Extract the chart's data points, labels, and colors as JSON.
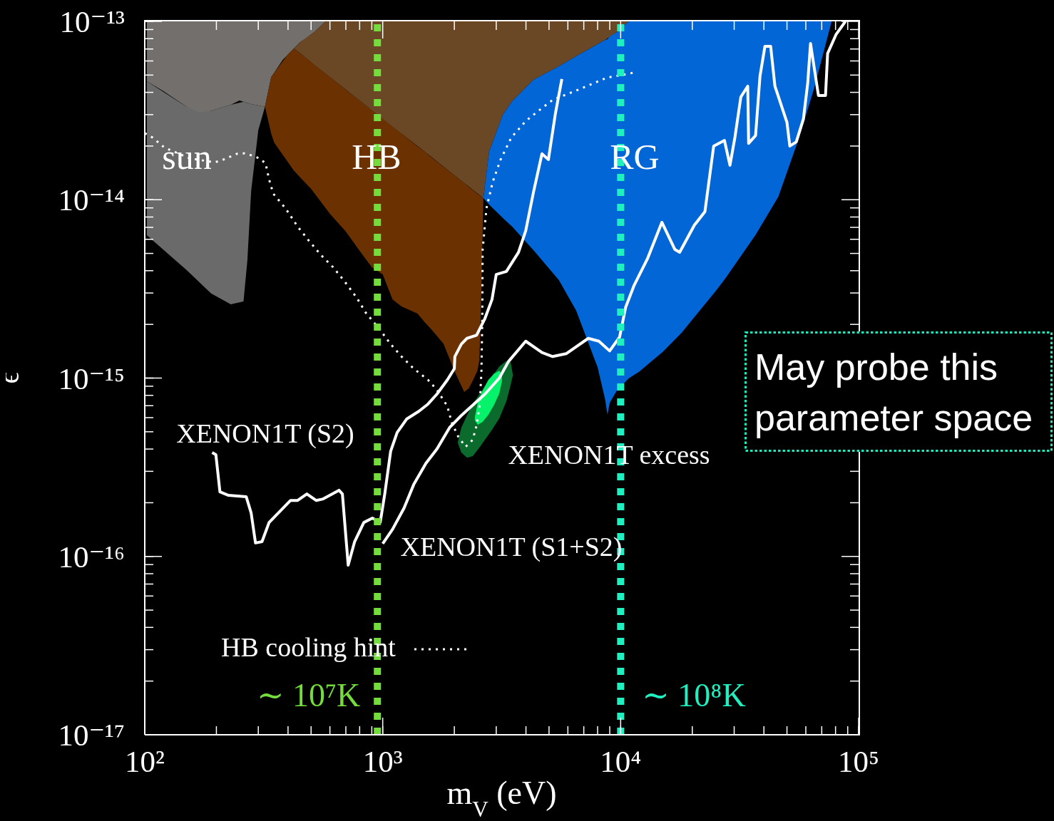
{
  "chart_data": {
    "type": "line",
    "xlabel": "m$_{V}$ (eV)",
    "ylabel": "ϵ",
    "log": "xy",
    "xlim": [
      100,
      100000
    ],
    "ylim": [
      1e-17,
      1e-13
    ],
    "xticks": [
      {
        "value": 100,
        "label": "10²"
      },
      {
        "value": 200,
        "label": null
      },
      {
        "value": 300,
        "label": null
      },
      {
        "value": 400,
        "label": null
      },
      {
        "value": 500,
        "label": null
      },
      {
        "value": 600,
        "label": null
      },
      {
        "value": 700,
        "label": null
      },
      {
        "value": 800,
        "label": null
      },
      {
        "value": 900,
        "label": null
      },
      {
        "value": 1000,
        "label": "10³"
      },
      {
        "value": 2000,
        "label": null
      },
      {
        "value": 3000,
        "label": null
      },
      {
        "value": 4000,
        "label": null
      },
      {
        "value": 5000,
        "label": null
      },
      {
        "value": 6000,
        "label": null
      },
      {
        "value": 7000,
        "label": null
      },
      {
        "value": 8000,
        "label": null
      },
      {
        "value": 9000,
        "label": null
      },
      {
        "value": 10000,
        "label": "10⁴"
      },
      {
        "value": 20000,
        "label": null
      },
      {
        "value": 30000,
        "label": null
      },
      {
        "value": 40000,
        "label": null
      },
      {
        "value": 50000,
        "label": null
      },
      {
        "value": 60000,
        "label": null
      },
      {
        "value": 70000,
        "label": null
      },
      {
        "value": 80000,
        "label": null
      },
      {
        "value": 90000,
        "label": null
      },
      {
        "value": 100000,
        "label": "10⁵"
      }
    ],
    "yticks": [
      {
        "value": 1e-17,
        "label": "10⁻¹⁷"
      },
      {
        "value": 2e-17,
        "label": null
      },
      {
        "value": 3e-17,
        "label": null
      },
      {
        "value": 4e-17,
        "label": null
      },
      {
        "value": 5e-17,
        "label": null
      },
      {
        "value": 6e-17,
        "label": null
      },
      {
        "value": 7e-17,
        "label": null
      },
      {
        "value": 8e-17,
        "label": null
      },
      {
        "value": 9e-17,
        "label": null
      },
      {
        "value": 1e-16,
        "label": "10⁻¹⁶"
      },
      {
        "value": 2e-16,
        "label": null
      },
      {
        "value": 3e-16,
        "label": null
      },
      {
        "value": 4e-16,
        "label": null
      },
      {
        "value": 5e-16,
        "label": null
      },
      {
        "value": 6e-16,
        "label": null
      },
      {
        "value": 7e-16,
        "label": null
      },
      {
        "value": 8e-16,
        "label": null
      },
      {
        "value": 9e-16,
        "label": null
      },
      {
        "value": 1e-15,
        "label": "10⁻¹⁵"
      },
      {
        "value": 2e-15,
        "label": null
      },
      {
        "value": 3e-15,
        "label": null
      },
      {
        "value": 4e-15,
        "label": null
      },
      {
        "value": 5e-15,
        "label": null
      },
      {
        "value": 6e-15,
        "label": null
      },
      {
        "value": 7e-15,
        "label": null
      },
      {
        "value": 8e-15,
        "label": null
      },
      {
        "value": 9e-15,
        "label": null
      },
      {
        "value": 1e-14,
        "label": "10⁻¹⁴"
      },
      {
        "value": 2e-14,
        "label": null
      },
      {
        "value": 3e-14,
        "label": null
      },
      {
        "value": 4e-14,
        "label": null
      },
      {
        "value": 5e-14,
        "label": null
      },
      {
        "value": 6e-14,
        "label": null
      },
      {
        "value": 7e-14,
        "label": null
      },
      {
        "value": 8e-14,
        "label": null
      },
      {
        "value": 9e-14,
        "label": null
      },
      {
        "value": 1e-13,
        "label": "10⁻¹³"
      }
    ],
    "legend": "bottom left",
    "marker": "none",
    "series": [
      {
        "color": "#6a6a6a",
        "x": [
          102,
          150,
          190,
          230,
          260,
          270,
          280,
          300,
          320
        ],
        "values": [
          null,
          null,
          null,
          null,
          null,
          null,
          null,
          null,
          null
        ],
        "upper": [
          4.62e-14,
          3.32e-14,
          3.15e-14,
          3.41e-14,
          3.54e-14,
          3.49e-14,
          3.44e-14,
          3.38e-14,
          3.32e-14
        ],
        "lower": [
          6.33e-15,
          4.03e-15,
          2.98e-15,
          2.59e-15,
          2.69e-15,
          4.58e-15,
          1.12e-14,
          2.45e-14,
          3.32e-14
        ]
      },
      {
        "color": "#736f6c",
        "x": [
          102,
          120,
          150,
          170,
          190,
          230,
          250,
          280,
          320,
          340,
          350,
          380,
          450,
          470,
          520,
          575
        ],
        "values": [
          null,
          null,
          null,
          null,
          null,
          null,
          null,
          null,
          null,
          null,
          null,
          null,
          null,
          null,
          null,
          null
        ],
        "upper": [
          1e-13,
          1e-13,
          1e-13,
          1e-13,
          1e-13,
          1e-13,
          1e-13,
          1e-13,
          1e-13,
          1e-13,
          1e-13,
          1e-13,
          1e-13,
          1e-13,
          1e-13,
          1e-13
        ],
        "lower": [
          4.62e-14,
          4.06e-14,
          3.32e-14,
          3.08e-14,
          3.15e-14,
          3.41e-14,
          3.6e-14,
          3.44e-14,
          3.32e-14,
          4.88e-14,
          5.16e-14,
          6.08e-14,
          7.66e-14,
          7.95e-14,
          8.79e-14,
          1e-13
        ]
      },
      {
        "color": "#6b3100",
        "x": [
          320,
          340,
          350,
          400,
          424,
          500,
          600,
          700,
          800,
          900,
          1000,
          1100,
          1200,
          1400,
          1500,
          1600,
          1800,
          2000,
          2200,
          2300,
          2400,
          2500,
          2550,
          2600,
          2650
        ],
        "values": [
          null,
          null,
          null,
          null,
          null,
          null,
          null,
          null,
          null,
          null,
          null,
          null,
          null,
          null,
          null,
          null,
          null,
          null,
          null,
          null,
          null,
          null,
          null,
          null,
          null
        ],
        "upper": [
          3.32e-14,
          4.88e-14,
          5.16e-14,
          6.55e-14,
          7.05e-14,
          5.92e-14,
          4.88e-14,
          4.13e-14,
          3.6e-14,
          3.18e-14,
          2.85e-14,
          2.58e-14,
          2.35e-14,
          1.99e-14,
          1.86e-14,
          1.73e-14,
          1.53e-14,
          1.37e-14,
          1.24e-14,
          1.18e-14,
          1.13e-14,
          1.08e-14,
          1.06e-14,
          1.04e-14,
          1.02e-14
        ],
        "lower": [
          3.32e-14,
          2.34e-14,
          2.09e-14,
          1.62e-14,
          1.45e-14,
          1.15e-14,
          8.34e-15,
          6.63e-15,
          5.17e-15,
          4.18e-15,
          3.81e-15,
          2.76e-15,
          2.52e-15,
          2.3e-15,
          2.06e-15,
          1.88e-15,
          1.56e-15,
          1.1e-15,
          8.36e-16,
          8.75e-16,
          9.77e-16,
          1.1e-15,
          1.26e-15,
          3.32e-15,
          1.02e-14
        ]
      },
      {
        "color": "#6a4725",
        "x": [
          424,
          450,
          520,
          575,
          760,
          1100,
          1500,
          2200,
          2650,
          2700,
          2800,
          3200,
          3500,
          4300,
          5500,
          6500,
          8600,
          9600,
          10800
        ],
        "values": [
          null,
          null,
          null,
          null,
          null,
          null,
          null,
          null,
          null,
          null,
          null,
          null,
          null,
          null,
          null,
          null,
          null,
          null,
          null
        ],
        "upper": [
          7.05e-14,
          7.66e-14,
          8.79e-14,
          1e-13,
          1e-13,
          1e-13,
          1e-13,
          1e-13,
          1e-13,
          1e-13,
          1e-13,
          1e-13,
          1e-13,
          1e-13,
          1e-13,
          1e-13,
          1e-13,
          1e-13,
          1e-13
        ],
        "lower": [
          7.05e-14,
          6.62e-14,
          5.67e-14,
          5.1e-14,
          3.8e-14,
          2.57e-14,
          1.86e-14,
          1.24e-14,
          1.02e-14,
          1.26e-14,
          1.86e-14,
          3e-14,
          3.57e-14,
          4.7e-14,
          5.6e-14,
          6.37e-14,
          7.87e-14,
          8.67e-14,
          1e-13
        ]
      },
      {
        "color": "#0366d6",
        "x": [
          2650,
          2700,
          2800,
          3200,
          3500,
          4300,
          5500,
          6500,
          8000,
          8600,
          8800,
          9000,
          9600,
          10800,
          12000,
          15000,
          18000,
          25000,
          27500,
          37000,
          46000,
          56000,
          65000,
          77000
        ],
        "values": [
          null,
          null,
          null,
          null,
          null,
          null,
          null,
          null,
          null,
          null,
          null,
          null,
          null,
          null,
          null,
          null,
          null,
          null,
          null,
          null,
          null,
          null,
          null,
          null
        ],
        "upper": [
          1.02e-14,
          1.26e-14,
          1.86e-14,
          3e-14,
          3.57e-14,
          4.7e-14,
          5.6e-14,
          6.37e-14,
          7.45e-14,
          7.87e-14,
          7.95e-14,
          8.24e-14,
          8.67e-14,
          1e-13,
          1e-13,
          1e-13,
          1e-13,
          1e-13,
          1e-13,
          1e-13,
          1e-13,
          1e-13,
          1e-13,
          1e-13
        ],
        "lower": [
          1.02e-14,
          9.93e-15,
          9.4e-15,
          7.89e-15,
          7.07e-15,
          5.22e-15,
          3.54e-15,
          2.39e-15,
          1.15e-15,
          7.62e-16,
          6.23e-16,
          7.28e-16,
          8.44e-16,
          9.95e-16,
          1.09e-15,
          1.4e-15,
          1.79e-15,
          3.06e-15,
          3.61e-15,
          6.39e-15,
          1.04e-14,
          2.19e-14,
          4.21e-14,
          1e-13
        ]
      },
      {
        "color": "#0a6b2c",
        "x": [
          2070,
          2140,
          2260,
          2390,
          2550,
          2690,
          2880,
          3090,
          3310,
          3450,
          3520
        ],
        "values": [
          null,
          null,
          null,
          null,
          null,
          null,
          null,
          null,
          null,
          null,
          null
        ],
        "upper": [
          4.39e-16,
          5.28e-16,
          6.17e-16,
          7.15e-16,
          8.13e-16,
          8.99e-16,
          1.02e-15,
          1.16e-15,
          1.25e-15,
          1.23e-15,
          1.05e-15
        ],
        "lower": [
          4.31e-16,
          3.82e-16,
          3.58e-16,
          3.65e-16,
          4.08e-16,
          4.51e-16,
          5.13e-16,
          5.95e-16,
          7.42e-16,
          9.16e-16,
          1.03e-15
        ]
      },
      {
        "color": "#05f26a",
        "x": [
          2440,
          2510,
          2630,
          2780,
          2940,
          3090,
          3170
        ],
        "values": [
          null,
          null,
          null,
          null,
          null,
          null,
          null
        ],
        "upper": [
          6.06e-16,
          7.28e-16,
          8.51e-16,
          9.77e-16,
          1.06e-15,
          1.1e-15,
          1.05e-15
        ],
        "lower": [
          5.78e-16,
          5.47e-16,
          5.68e-16,
          6.23e-16,
          7.08e-16,
          8.21e-16,
          9.59e-16
        ]
      },
      {
        "name": "HB cooling hint",
        "color": "#ffffff",
        "line_style": "dotted",
        "x": [
          100,
          108,
          121,
          154,
          196,
          210,
          244,
          263,
          282,
          302,
          322,
          333,
          347,
          390,
          439,
          490,
          551,
          619,
          692,
          778,
          850,
          976,
          1080,
          1200,
          1350,
          1550,
          1690,
          1870,
          1950,
          2080,
          2230,
          2390,
          2480,
          2560,
          2600,
          2620,
          2630,
          2730,
          2900,
          3130,
          3470,
          3990,
          4540,
          5180,
          6730,
          8740,
          11400
        ],
        "values": [
          2.36e-14,
          2.23e-14,
          1.96e-14,
          1.71e-14,
          1.62e-14,
          1.66e-14,
          1.81e-14,
          1.82e-14,
          1.77e-14,
          1.71e-14,
          1.6e-14,
          1.3e-14,
          1.08e-14,
          8.97e-15,
          7.07e-15,
          5.88e-15,
          4.89e-15,
          4.18e-15,
          3.48e-15,
          2.82e-15,
          2.32e-15,
          1.86e-15,
          1.55e-15,
          1.32e-15,
          1.13e-15,
          9.77e-16,
          8.59e-16,
          6.95e-16,
          5.63e-16,
          4.68e-16,
          4.12e-16,
          4.51e-16,
          5.42e-16,
          7.15e-16,
          1.1e-15,
          2.04e-15,
          5.26e-15,
          8.97e-15,
          1.26e-14,
          1.68e-14,
          2.23e-14,
          2.76e-14,
          3.17e-14,
          3.63e-14,
          4.17e-14,
          4.83e-14,
          5.16e-14
        ]
      },
      {
        "color": "#ffffff",
        "x": [
          192,
          199,
          207,
          225,
          267,
          280,
          292,
          311,
          333,
          410,
          439,
          480,
          525,
          562,
          655,
          677,
          716,
          762,
          833,
          905,
          976,
          1020,
          1080,
          1150,
          1260,
          1420,
          1550,
          1690,
          1870,
          2000,
          2010,
          2140,
          2260,
          2480,
          2690,
          2880,
          3000,
          3310,
          3720,
          3990,
          4300,
          4670,
          4970,
          5320,
          5660
        ],
        "values": [
          3.82e-16,
          3.72e-16,
          2.3e-16,
          2.2e-16,
          2.16e-16,
          1.75e-16,
          1.19e-16,
          1.21e-16,
          1.55e-16,
          2.06e-16,
          2.06e-16,
          2.24e-16,
          2.06e-16,
          2.1e-16,
          2.35e-16,
          2.24e-16,
          8.93e-17,
          1.21e-16,
          1.55e-16,
          1.64e-16,
          1.55e-16,
          2.24e-16,
          3.89e-16,
          4.95e-16,
          5.89e-16,
          6.52e-16,
          7.15e-16,
          8.13e-16,
          9.77e-16,
          1.13e-15,
          1.32e-15,
          1.55e-15,
          1.67e-15,
          1.74e-15,
          2.16e-15,
          2.76e-15,
          3.81e-15,
          3.96e-15,
          5.07e-15,
          6.69e-15,
          1.1e-14,
          1.81e-14,
          1.68e-14,
          3.05e-14,
          4.75e-14
        ]
      },
      {
        "color": "#ffffff",
        "x": [
          1000,
          1100,
          1230,
          1350,
          1520,
          1690,
          1910,
          2140,
          2690,
          3090,
          3380,
          3990,
          4670,
          5180,
          5900,
          7310,
          8100,
          8990,
          9900,
          10500,
          11400,
          13000,
          14900,
          16900,
          17700,
          20400,
          22600,
          24600,
          27300,
          28800,
          30200,
          32000,
          34200,
          34500,
          36900,
          38500,
          40400,
          42700,
          44500,
          50000,
          51400,
          54700,
          58600,
          61100,
          62800,
          65000,
          67800,
          72600,
          74100,
          80500,
          88000
        ],
        "values": [
          1.18e-16,
          1.42e-16,
          1.87e-16,
          2.53e-16,
          3.33e-16,
          4e-16,
          5.28e-16,
          6.17e-16,
          8.13e-16,
          1e-15,
          1.24e-15,
          1.61e-15,
          1.39e-15,
          1.32e-15,
          1.37e-15,
          1.67e-15,
          1.61e-15,
          1.42e-15,
          1.7e-15,
          2.5e-15,
          3.32e-15,
          4.71e-15,
          7.47e-15,
          5.26e-15,
          5.07e-15,
          7.2e-15,
          8.57e-15,
          2e-14,
          2.15e-14,
          1.56e-14,
          2.23e-14,
          3.77e-14,
          4.33e-14,
          2.07e-14,
          2.29e-14,
          4.92e-14,
          7.25e-14,
          7.25e-14,
          4.33e-14,
          2.71e-14,
          2e-14,
          2.11e-14,
          2.83e-14,
          4.49e-14,
          7.52e-14,
          5.55e-14,
          3.84e-14,
          3.84e-14,
          6.61e-14,
          8.47e-14,
          1e-13
        ]
      }
    ],
    "ref_lines": [
      {
        "axis": "x",
        "value": 950,
        "label": "∼ 10⁷K",
        "color": "#74dc3c",
        "line_style": "dashed"
      },
      {
        "axis": "x",
        "value": 10000,
        "label": "∼ 10⁸K",
        "color": "#20f0c0",
        "line_style": "dashed"
      }
    ],
    "annotations": [
      "sun",
      "HB",
      "RG",
      "XENON1T (S2)",
      "XENON1T (S1+S2)",
      "XENON1T excess",
      "May probe this parameter space"
    ]
  }
}
